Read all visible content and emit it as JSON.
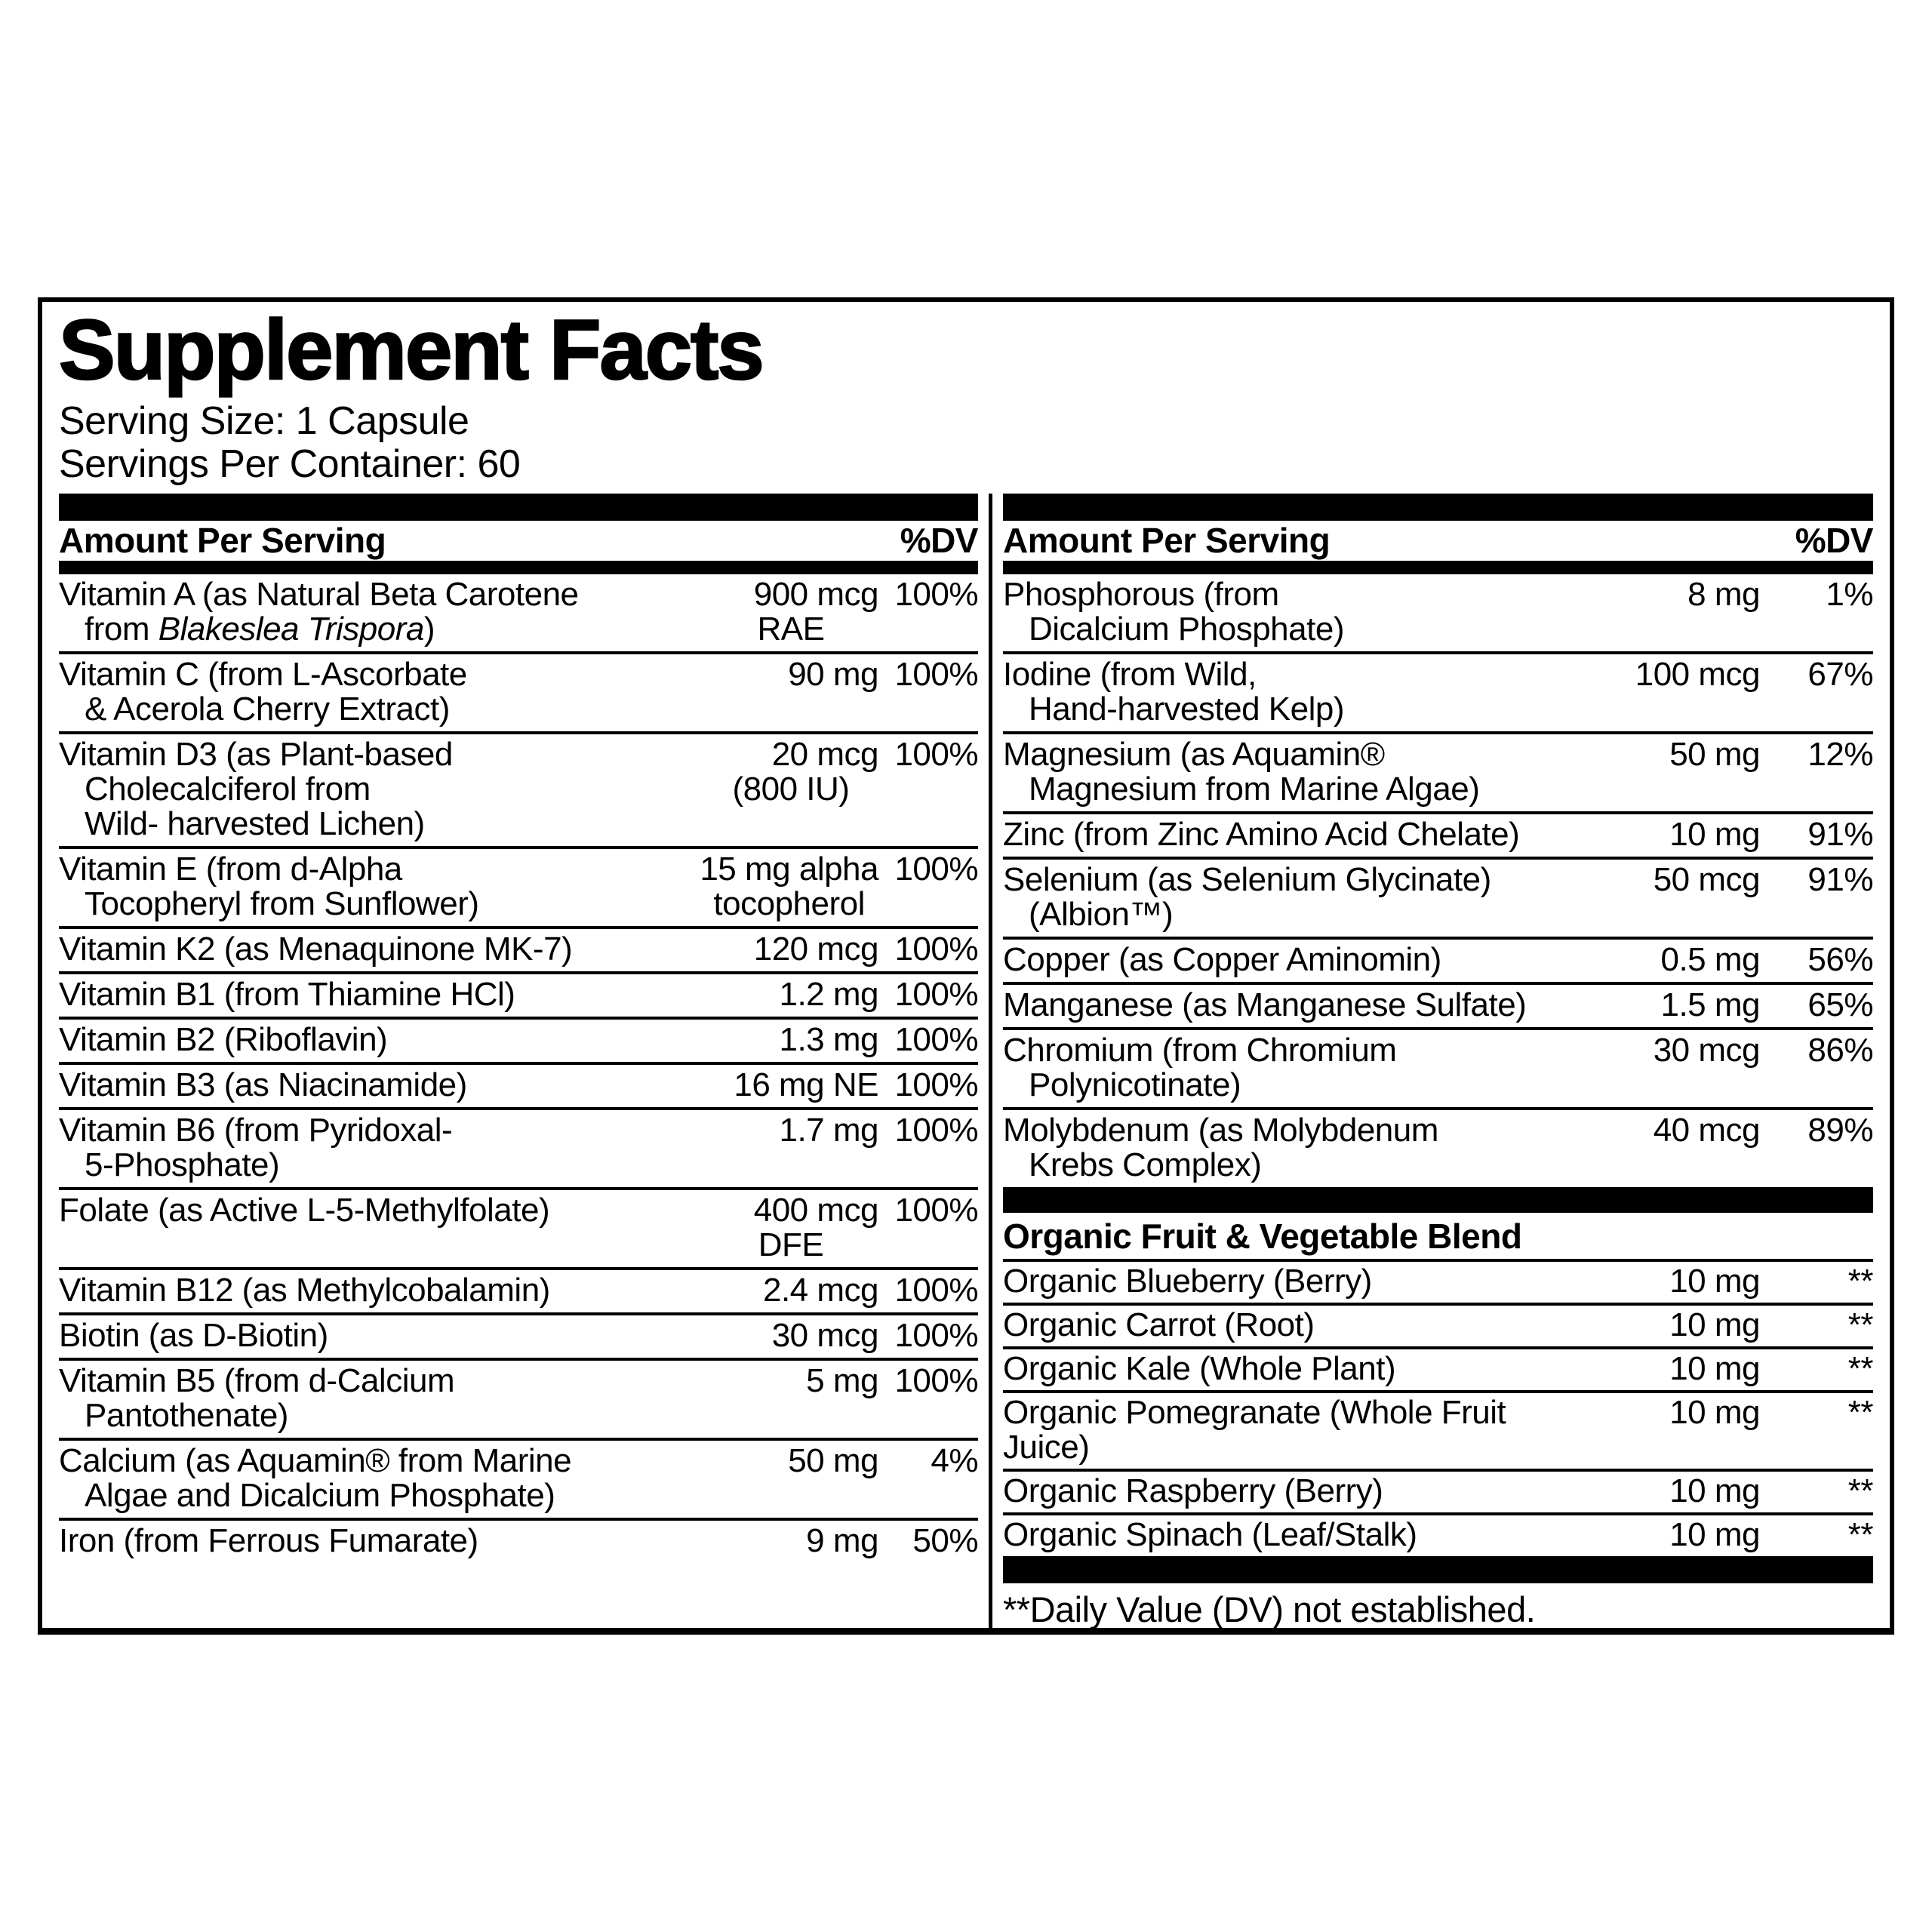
{
  "panel": {
    "title": "Supplement Facts",
    "serving_size": "Serving Size: 1 Capsule",
    "servings_per_container": "Servings Per Container: 60",
    "column_header": {
      "amount_label": "Amount Per Serving",
      "dv_label": "%DV"
    },
    "left_column": {
      "rows": [
        {
          "name_lines": [
            "Vitamin A (as Natural Beta Carotene",
            "from *Blakeslea Trispora*)"
          ],
          "amount_lines": [
            "900 mcg",
            "RAE"
          ],
          "dv": "100%"
        },
        {
          "name_lines": [
            "Vitamin C (from L-Ascorbate",
            "& Acerola Cherry Extract)"
          ],
          "amount_lines": [
            "90 mg"
          ],
          "dv": "100%"
        },
        {
          "name_lines": [
            "Vitamin D3 (as Plant-based",
            "Cholecalciferol from",
            "Wild- harvested Lichen)"
          ],
          "amount_lines": [
            "20 mcg",
            "(800 IU)"
          ],
          "dv": "100%"
        },
        {
          "name_lines": [
            "Vitamin E (from d-Alpha",
            "Tocopheryl from Sunflower)"
          ],
          "amount_lines": [
            "15 mg alpha",
            "tocopherol"
          ],
          "dv": "100%"
        },
        {
          "name_lines": [
            "Vitamin K2 (as Menaquinone MK-7)"
          ],
          "amount_lines": [
            "120 mcg"
          ],
          "dv": "100%"
        },
        {
          "name_lines": [
            "Vitamin B1 (from Thiamine HCl)"
          ],
          "amount_lines": [
            "1.2 mg"
          ],
          "dv": "100%"
        },
        {
          "name_lines": [
            "Vitamin B2 (Riboflavin)"
          ],
          "amount_lines": [
            "1.3 mg"
          ],
          "dv": "100%"
        },
        {
          "name_lines": [
            "Vitamin B3 (as Niacinamide)"
          ],
          "amount_lines": [
            "16 mg NE"
          ],
          "dv": "100%"
        },
        {
          "name_lines": [
            "Vitamin B6 (from Pyridoxal-",
            "5-Phosphate)"
          ],
          "amount_lines": [
            "1.7 mg"
          ],
          "dv": "100%"
        },
        {
          "name_lines": [
            "Folate (as Active L-5-Methylfolate)"
          ],
          "amount_lines": [
            "400 mcg",
            "DFE"
          ],
          "dv": "100%"
        },
        {
          "name_lines": [
            "Vitamin B12 (as Methylcobalamin)"
          ],
          "amount_lines": [
            "2.4 mcg"
          ],
          "dv": "100%"
        },
        {
          "name_lines": [
            "Biotin (as D-Biotin)"
          ],
          "amount_lines": [
            "30 mcg"
          ],
          "dv": "100%"
        },
        {
          "name_lines": [
            "Vitamin B5 (from d-Calcium",
            "Pantothenate)"
          ],
          "amount_lines": [
            "5 mg"
          ],
          "dv": "100%"
        },
        {
          "name_lines": [
            "Calcium (as Aquamin® from Marine",
            "Algae and Dicalcium Phosphate)"
          ],
          "amount_lines": [
            "50 mg"
          ],
          "dv": "4%"
        },
        {
          "name_lines": [
            "Iron (from Ferrous Fumarate)"
          ],
          "amount_lines": [
            "9 mg"
          ],
          "dv": "50%"
        }
      ]
    },
    "right_column": {
      "rows": [
        {
          "name_lines": [
            "Phosphorous (from",
            "Dicalcium Phosphate)"
          ],
          "amount_lines": [
            "8 mg"
          ],
          "dv": "1%"
        },
        {
          "name_lines": [
            "Iodine (from Wild,",
            "Hand-harvested Kelp)"
          ],
          "amount_lines": [
            "100 mcg"
          ],
          "dv": "67%"
        },
        {
          "name_lines": [
            "Magnesium (as Aquamin®",
            "Magnesium from Marine Algae)"
          ],
          "amount_lines": [
            "50 mg"
          ],
          "dv": "12%"
        },
        {
          "name_lines": [
            "Zinc (from Zinc Amino Acid Chelate)"
          ],
          "amount_lines": [
            "10 mg"
          ],
          "dv": "91%"
        },
        {
          "name_lines": [
            "Selenium (as Selenium Glycinate)",
            "(Albion™)"
          ],
          "amount_lines": [
            "50 mcg"
          ],
          "dv": "91%"
        },
        {
          "name_lines": [
            "Copper (as Copper Aminomin)"
          ],
          "amount_lines": [
            "0.5 mg"
          ],
          "dv": "56%"
        },
        {
          "name_lines": [
            "Manganese (as Manganese Sulfate)"
          ],
          "amount_lines": [
            "1.5 mg"
          ],
          "dv": "65%"
        },
        {
          "name_lines": [
            "Chromium (from Chromium",
            "Polynicotinate)"
          ],
          "amount_lines": [
            "30 mcg"
          ],
          "dv": "86%"
        },
        {
          "name_lines": [
            "Molybdenum (as Molybdenum",
            "Krebs Complex)"
          ],
          "amount_lines": [
            "40 mcg"
          ],
          "dv": "89%"
        }
      ],
      "blend": {
        "title": "Organic Fruit & Vegetable Blend",
        "rows": [
          {
            "name_lines": [
              "Organic Blueberry (Berry)"
            ],
            "amount_lines": [
              "10 mg"
            ],
            "dv": "**"
          },
          {
            "name_lines": [
              "Organic Carrot (Root)"
            ],
            "amount_lines": [
              "10 mg"
            ],
            "dv": "**"
          },
          {
            "name_lines": [
              "Organic Kale (Whole Plant)"
            ],
            "amount_lines": [
              "10 mg"
            ],
            "dv": "**"
          },
          {
            "name_lines": [
              "Organic Pomegranate (Whole Fruit Juice)"
            ],
            "amount_lines": [
              "10 mg"
            ],
            "dv": "**"
          },
          {
            "name_lines": [
              "Organic Raspberry (Berry)"
            ],
            "amount_lines": [
              "10 mg"
            ],
            "dv": "**"
          },
          {
            "name_lines": [
              "Organic Spinach (Leaf/Stalk)"
            ],
            "amount_lines": [
              "10 mg"
            ],
            "dv": "**"
          }
        ]
      },
      "footnote": "**Daily Value (DV) not established."
    }
  }
}
